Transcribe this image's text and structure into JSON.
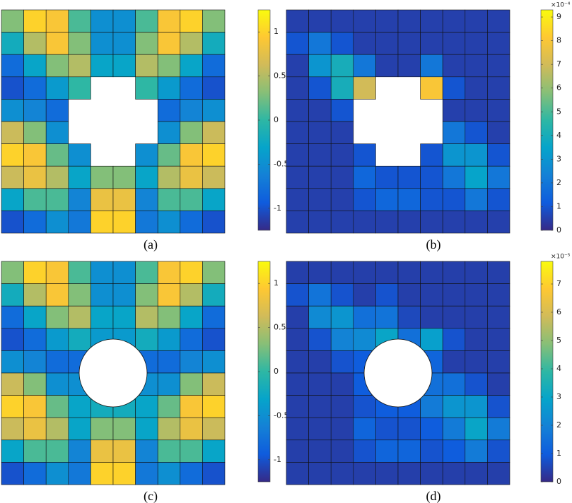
{
  "chart_data": [
    {
      "type": "heatmap",
      "caption": "(a)",
      "clim": [
        -1.25,
        1.25
      ],
      "cticks": [
        -1,
        -0.5,
        0,
        0.5,
        1
      ],
      "colormap": [
        "#352a87",
        "#0f5cdd",
        "#1481d6",
        "#06a4ca",
        "#2eb7a4",
        "#87bf77",
        "#d1bb59",
        "#fec832",
        "#f9fb0e"
      ],
      "z": [
        [
          0.3,
          1.0,
          0.9,
          0.1,
          -0.5,
          -0.5,
          0.1,
          0.9,
          1.0,
          0.3
        ],
        [
          -0.2,
          0.5,
          0.9,
          0.3,
          -0.5,
          -0.5,
          0.3,
          0.9,
          0.5,
          -0.2
        ],
        [
          -0.8,
          -0.3,
          0.3,
          0.5,
          -0.3,
          -0.3,
          0.5,
          0.3,
          -0.3,
          -0.8
        ],
        [
          -1.0,
          -0.8,
          -0.4,
          0.0,
          null,
          null,
          0.0,
          -0.4,
          -0.8,
          -1.0
        ],
        [
          -0.5,
          -0.6,
          -0.8,
          null,
          null,
          null,
          null,
          -0.8,
          -0.6,
          -0.5
        ],
        [
          0.6,
          0.3,
          -0.5,
          null,
          null,
          null,
          null,
          -0.5,
          0.3,
          0.6
        ],
        [
          1.0,
          0.9,
          0.2,
          -0.5,
          null,
          null,
          -0.5,
          0.2,
          0.9,
          1.0
        ],
        [
          0.6,
          0.8,
          0.5,
          -0.3,
          0.3,
          0.3,
          -0.3,
          0.5,
          0.8,
          0.6
        ],
        [
          -0.3,
          0.1,
          0.1,
          -0.6,
          0.8,
          0.8,
          -0.6,
          0.1,
          0.1,
          -0.3
        ],
        [
          -1.0,
          -0.8,
          -0.5,
          -0.7,
          1.0,
          1.0,
          -0.7,
          -0.5,
          -0.8,
          -1.0
        ]
      ]
    },
    {
      "type": "heatmap",
      "caption": "(b)",
      "exponent_label": "×10⁻⁴",
      "clim": [
        0,
        9.3
      ],
      "cticks": [
        0,
        1,
        2,
        3,
        4,
        5,
        6,
        7,
        8,
        9
      ],
      "colormap": [
        "#352a87",
        "#0f5cdd",
        "#1481d6",
        "#06a4ca",
        "#2eb7a4",
        "#87bf77",
        "#d1bb59",
        "#fec832",
        "#f9fb0e"
      ],
      "z": [
        [
          0.5,
          0.5,
          0.5,
          0.5,
          0.5,
          0.5,
          0.5,
          0.5,
          0.5,
          0.5
        ],
        [
          1,
          2,
          1,
          0.5,
          0.5,
          0.5,
          0.5,
          0.5,
          0.5,
          0.5
        ],
        [
          0.5,
          3,
          4,
          2,
          0.5,
          0.5,
          2,
          0.5,
          0.5,
          0.5
        ],
        [
          0.5,
          1,
          4,
          7,
          null,
          null,
          8,
          1,
          0.5,
          0.5
        ],
        [
          0.5,
          0.5,
          1,
          null,
          null,
          null,
          null,
          0.5,
          0.5,
          0.5
        ],
        [
          0.5,
          0.5,
          0.5,
          null,
          null,
          null,
          null,
          2,
          1,
          0.5
        ],
        [
          0.5,
          0.5,
          0.5,
          1,
          null,
          null,
          1,
          3,
          3,
          1
        ],
        [
          0.5,
          0.5,
          0.5,
          1.5,
          1,
          1,
          1,
          2,
          3.5,
          2
        ],
        [
          0.5,
          0.5,
          0.5,
          1,
          1.5,
          1.5,
          1,
          1,
          2,
          1
        ],
        [
          0.5,
          0.5,
          0.5,
          0.5,
          0.5,
          0.5,
          0.5,
          0.5,
          0.5,
          0.5
        ]
      ]
    },
    {
      "type": "heatmap",
      "caption": "(c)",
      "clim": [
        -1.25,
        1.25
      ],
      "cticks": [
        -1,
        -0.5,
        0,
        0.5,
        1
      ],
      "colormap": [
        "#352a87",
        "#0f5cdd",
        "#1481d6",
        "#06a4ca",
        "#2eb7a4",
        "#87bf77",
        "#d1bb59",
        "#fec832",
        "#f9fb0e"
      ],
      "z": [
        [
          0.3,
          1.0,
          0.9,
          0.1,
          -0.5,
          -0.5,
          0.1,
          0.9,
          1.0,
          0.3
        ],
        [
          -0.2,
          0.5,
          0.9,
          0.3,
          -0.5,
          -0.5,
          0.3,
          0.9,
          0.5,
          -0.2
        ],
        [
          -0.8,
          -0.3,
          0.3,
          0.5,
          -0.3,
          -0.3,
          0.5,
          0.3,
          -0.3,
          -0.8
        ],
        [
          -1.0,
          -0.8,
          -0.4,
          -0.2,
          -0.4,
          -0.4,
          -0.2,
          -0.4,
          -0.8,
          -1.0
        ],
        [
          -0.5,
          -0.6,
          -0.8,
          -0.8,
          null,
          null,
          -0.8,
          -0.8,
          -0.6,
          -0.5
        ],
        [
          0.6,
          0.3,
          -0.5,
          -0.5,
          null,
          null,
          -0.5,
          -0.5,
          0.3,
          0.6
        ],
        [
          1.0,
          0.9,
          0.2,
          -0.3,
          -0.2,
          -0.2,
          -0.3,
          0.2,
          0.9,
          1.0
        ],
        [
          0.6,
          0.8,
          0.5,
          -0.3,
          0.3,
          0.3,
          -0.3,
          0.5,
          0.8,
          0.6
        ],
        [
          -0.3,
          0.1,
          0.1,
          -0.6,
          0.8,
          0.8,
          -0.6,
          0.1,
          0.1,
          -0.3
        ],
        [
          -1.0,
          -0.8,
          -0.5,
          -0.7,
          1.0,
          1.0,
          -0.7,
          -0.5,
          -0.8,
          -1.0
        ]
      ]
    },
    {
      "type": "heatmap",
      "caption": "(d)",
      "exponent_label": "×10⁻⁵",
      "clim": [
        0,
        7.8
      ],
      "cticks": [
        0,
        1,
        2,
        3,
        4,
        5,
        6,
        7
      ],
      "colormap": [
        "#352a87",
        "#0f5cdd",
        "#1481d6",
        "#06a4ca",
        "#2eb7a4",
        "#87bf77",
        "#d1bb59",
        "#fec832",
        "#f9fb0e"
      ],
      "z": [
        [
          0.4,
          0.4,
          0.4,
          0.4,
          0.4,
          0.4,
          0.4,
          0.4,
          0.4,
          0.4
        ],
        [
          0.8,
          1.6,
          0.8,
          0.4,
          0.8,
          0.4,
          0.4,
          0.4,
          0.4,
          0.4
        ],
        [
          0.4,
          2.2,
          2.5,
          1.5,
          1.6,
          0.6,
          0.4,
          0.4,
          0.4,
          0.4
        ],
        [
          0.4,
          0.8,
          2.0,
          2.2,
          3.0,
          1.5,
          2.8,
          0.8,
          0.4,
          0.4
        ],
        [
          0.4,
          0.4,
          0.8,
          1.0,
          null,
          null,
          1.2,
          0.4,
          0.4,
          0.4
        ],
        [
          0.4,
          0.4,
          0.4,
          1.0,
          null,
          null,
          1.5,
          1.5,
          0.8,
          0.4
        ],
        [
          0.4,
          0.4,
          0.4,
          0.8,
          1.0,
          1.0,
          1.8,
          2.5,
          2.5,
          0.8
        ],
        [
          0.4,
          0.4,
          0.4,
          1.2,
          0.8,
          0.8,
          1.0,
          1.8,
          3.0,
          1.8
        ],
        [
          0.4,
          0.4,
          0.4,
          0.8,
          1.2,
          1.2,
          0.8,
          1.0,
          1.8,
          0.8
        ],
        [
          0.4,
          0.4,
          0.4,
          0.4,
          0.4,
          0.4,
          0.4,
          0.4,
          0.4,
          0.4
        ]
      ]
    }
  ]
}
